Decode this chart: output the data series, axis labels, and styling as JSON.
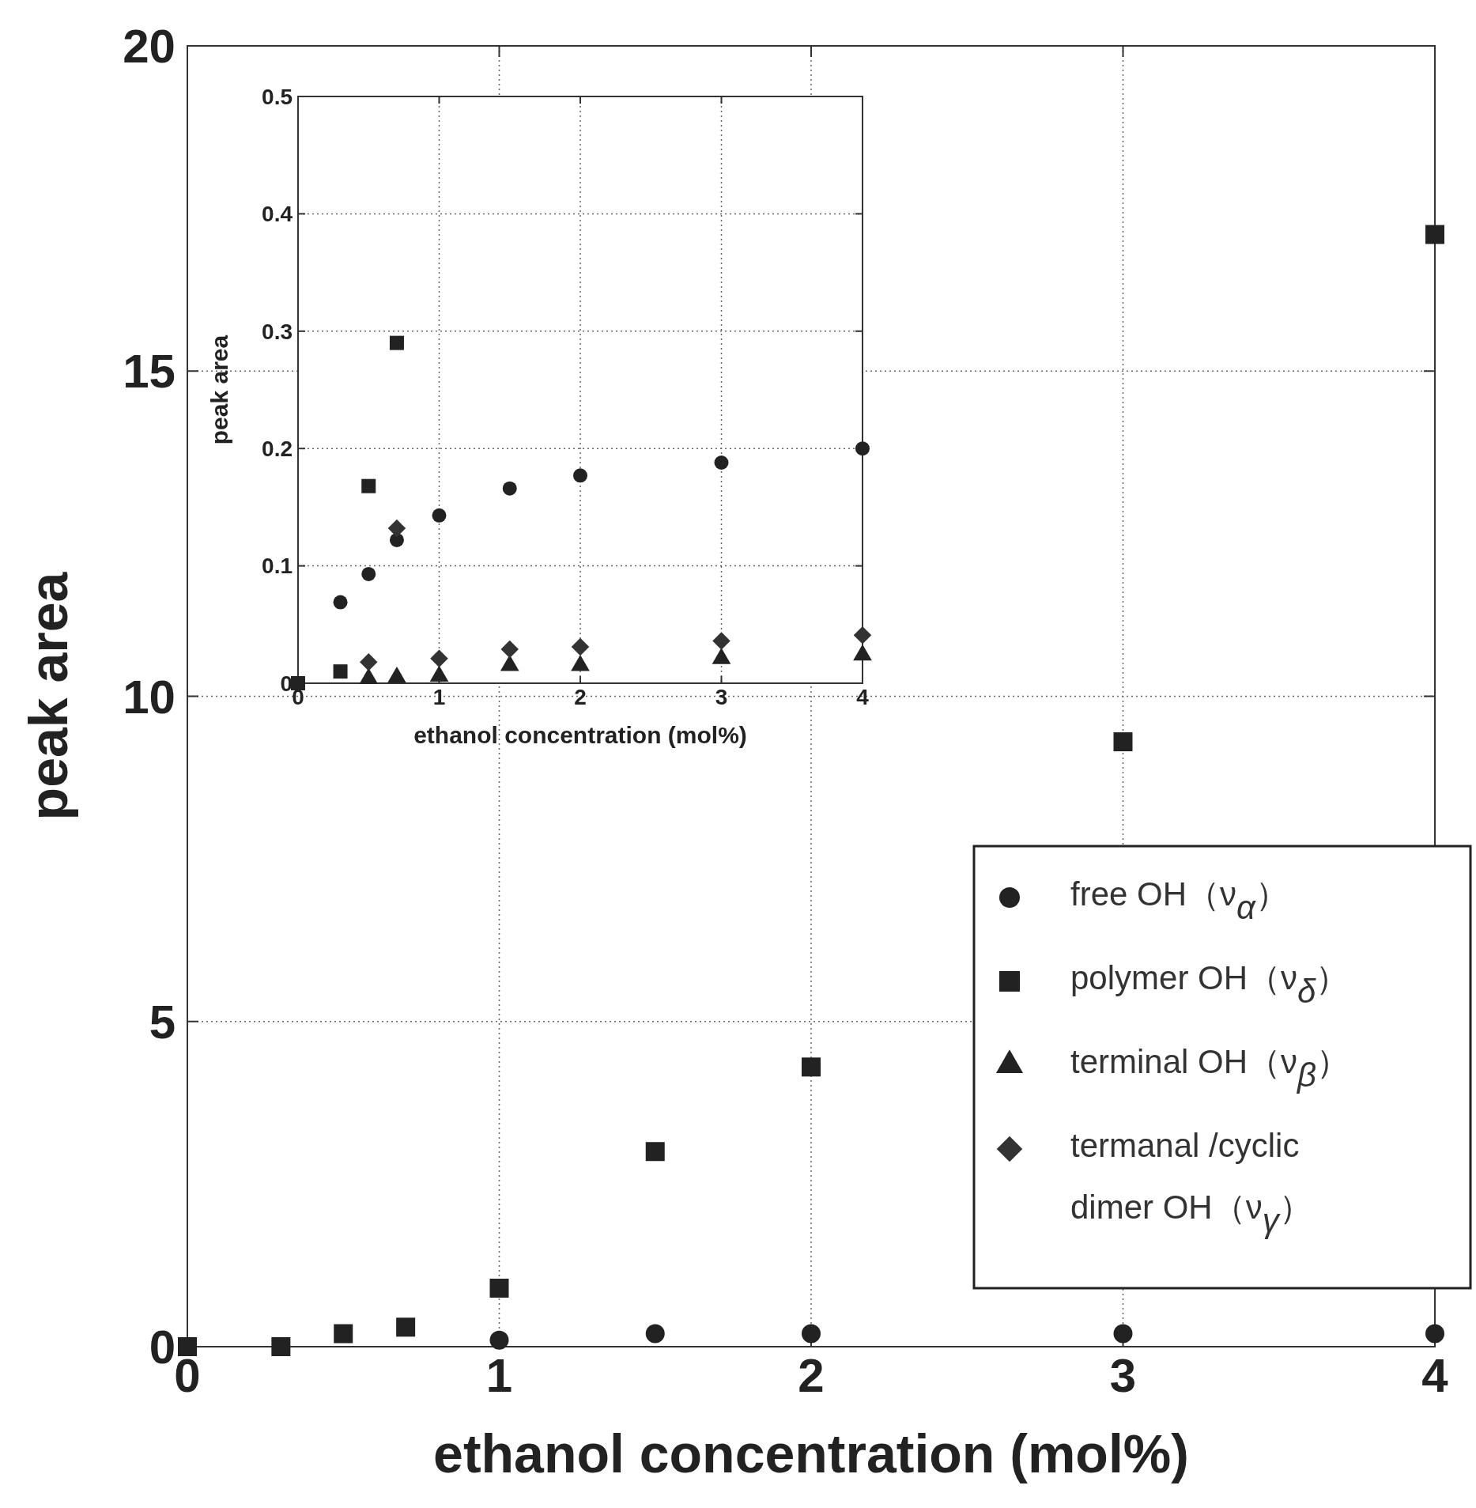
{
  "chart_data": [
    {
      "type": "scatter",
      "xlabel": "ethanol concentration (mol%)",
      "ylabel": "peak area",
      "xlim": [
        0,
        4
      ],
      "ylim": [
        0,
        20
      ],
      "xticks": [
        0,
        1,
        2,
        3,
        4
      ],
      "yticks": [
        0,
        5,
        10,
        15,
        20
      ],
      "grid": true,
      "legend": "right",
      "series": [
        {
          "name": "free OH（ν$_{α}$）",
          "color": "#222222",
          "marker": "circle",
          "x": [
            1,
            1.5,
            2,
            3,
            4
          ],
          "values": [
            0.1,
            0.2,
            0.2,
            0.2,
            0.2
          ]
        },
        {
          "name": "polymer OH（ν$_{δ}$）",
          "color": "#222222",
          "marker": "square",
          "x": [
            0,
            0.3,
            0.5,
            0.7,
            1,
            1.5,
            2,
            3,
            4
          ],
          "values": [
            0,
            0,
            0.2,
            0.3,
            0.9,
            3,
            4.3,
            9.3,
            17.1
          ]
        },
        {
          "name": "terminal OH（ν$_{β}$）",
          "color": "#222222",
          "marker": "triangle"
        },
        {
          "name": "termanal /cyclic dimer OH（ν$_{γ}$）",
          "color": "#333333",
          "marker": "diamond"
        }
      ]
    },
    {
      "type": "scatter",
      "xlabel": "ethanol concentration (mol%)",
      "ylabel": "peak area",
      "xlim": [
        0,
        4
      ],
      "ylim": [
        0,
        0.5
      ],
      "xticks": [
        0,
        1,
        2,
        3,
        4
      ],
      "yticks": [
        0,
        0.1,
        0.2,
        0.3,
        0.4,
        0.5
      ],
      "grid": true,
      "series": [
        {
          "color": "#222222",
          "marker": "circle",
          "x": [
            0.3,
            0.5,
            0.7,
            1,
            1.5,
            2,
            3,
            4
          ],
          "values": [
            0.069,
            0.093,
            0.122,
            0.143,
            0.166,
            0.177,
            0.188,
            0.2
          ]
        },
        {
          "color": "#222222",
          "marker": "square",
          "x": [
            0,
            0.3,
            0.5,
            0.7
          ],
          "values": [
            0,
            0.01,
            0.168,
            0.29
          ]
        },
        {
          "color": "#222222",
          "marker": "triangle",
          "x": [
            0.5,
            0.7,
            1,
            1.5,
            2,
            3,
            4
          ],
          "values": [
            0.004,
            0.005,
            0.006,
            0.015,
            0.015,
            0.021,
            0.024
          ]
        },
        {
          "color": "#333333",
          "marker": "diamond",
          "x": [
            0.5,
            0.7,
            1,
            1.5,
            2,
            3,
            4
          ],
          "values": [
            0.018,
            0.132,
            0.021,
            0.029,
            0.031,
            0.036,
            0.041
          ]
        }
      ]
    }
  ]
}
